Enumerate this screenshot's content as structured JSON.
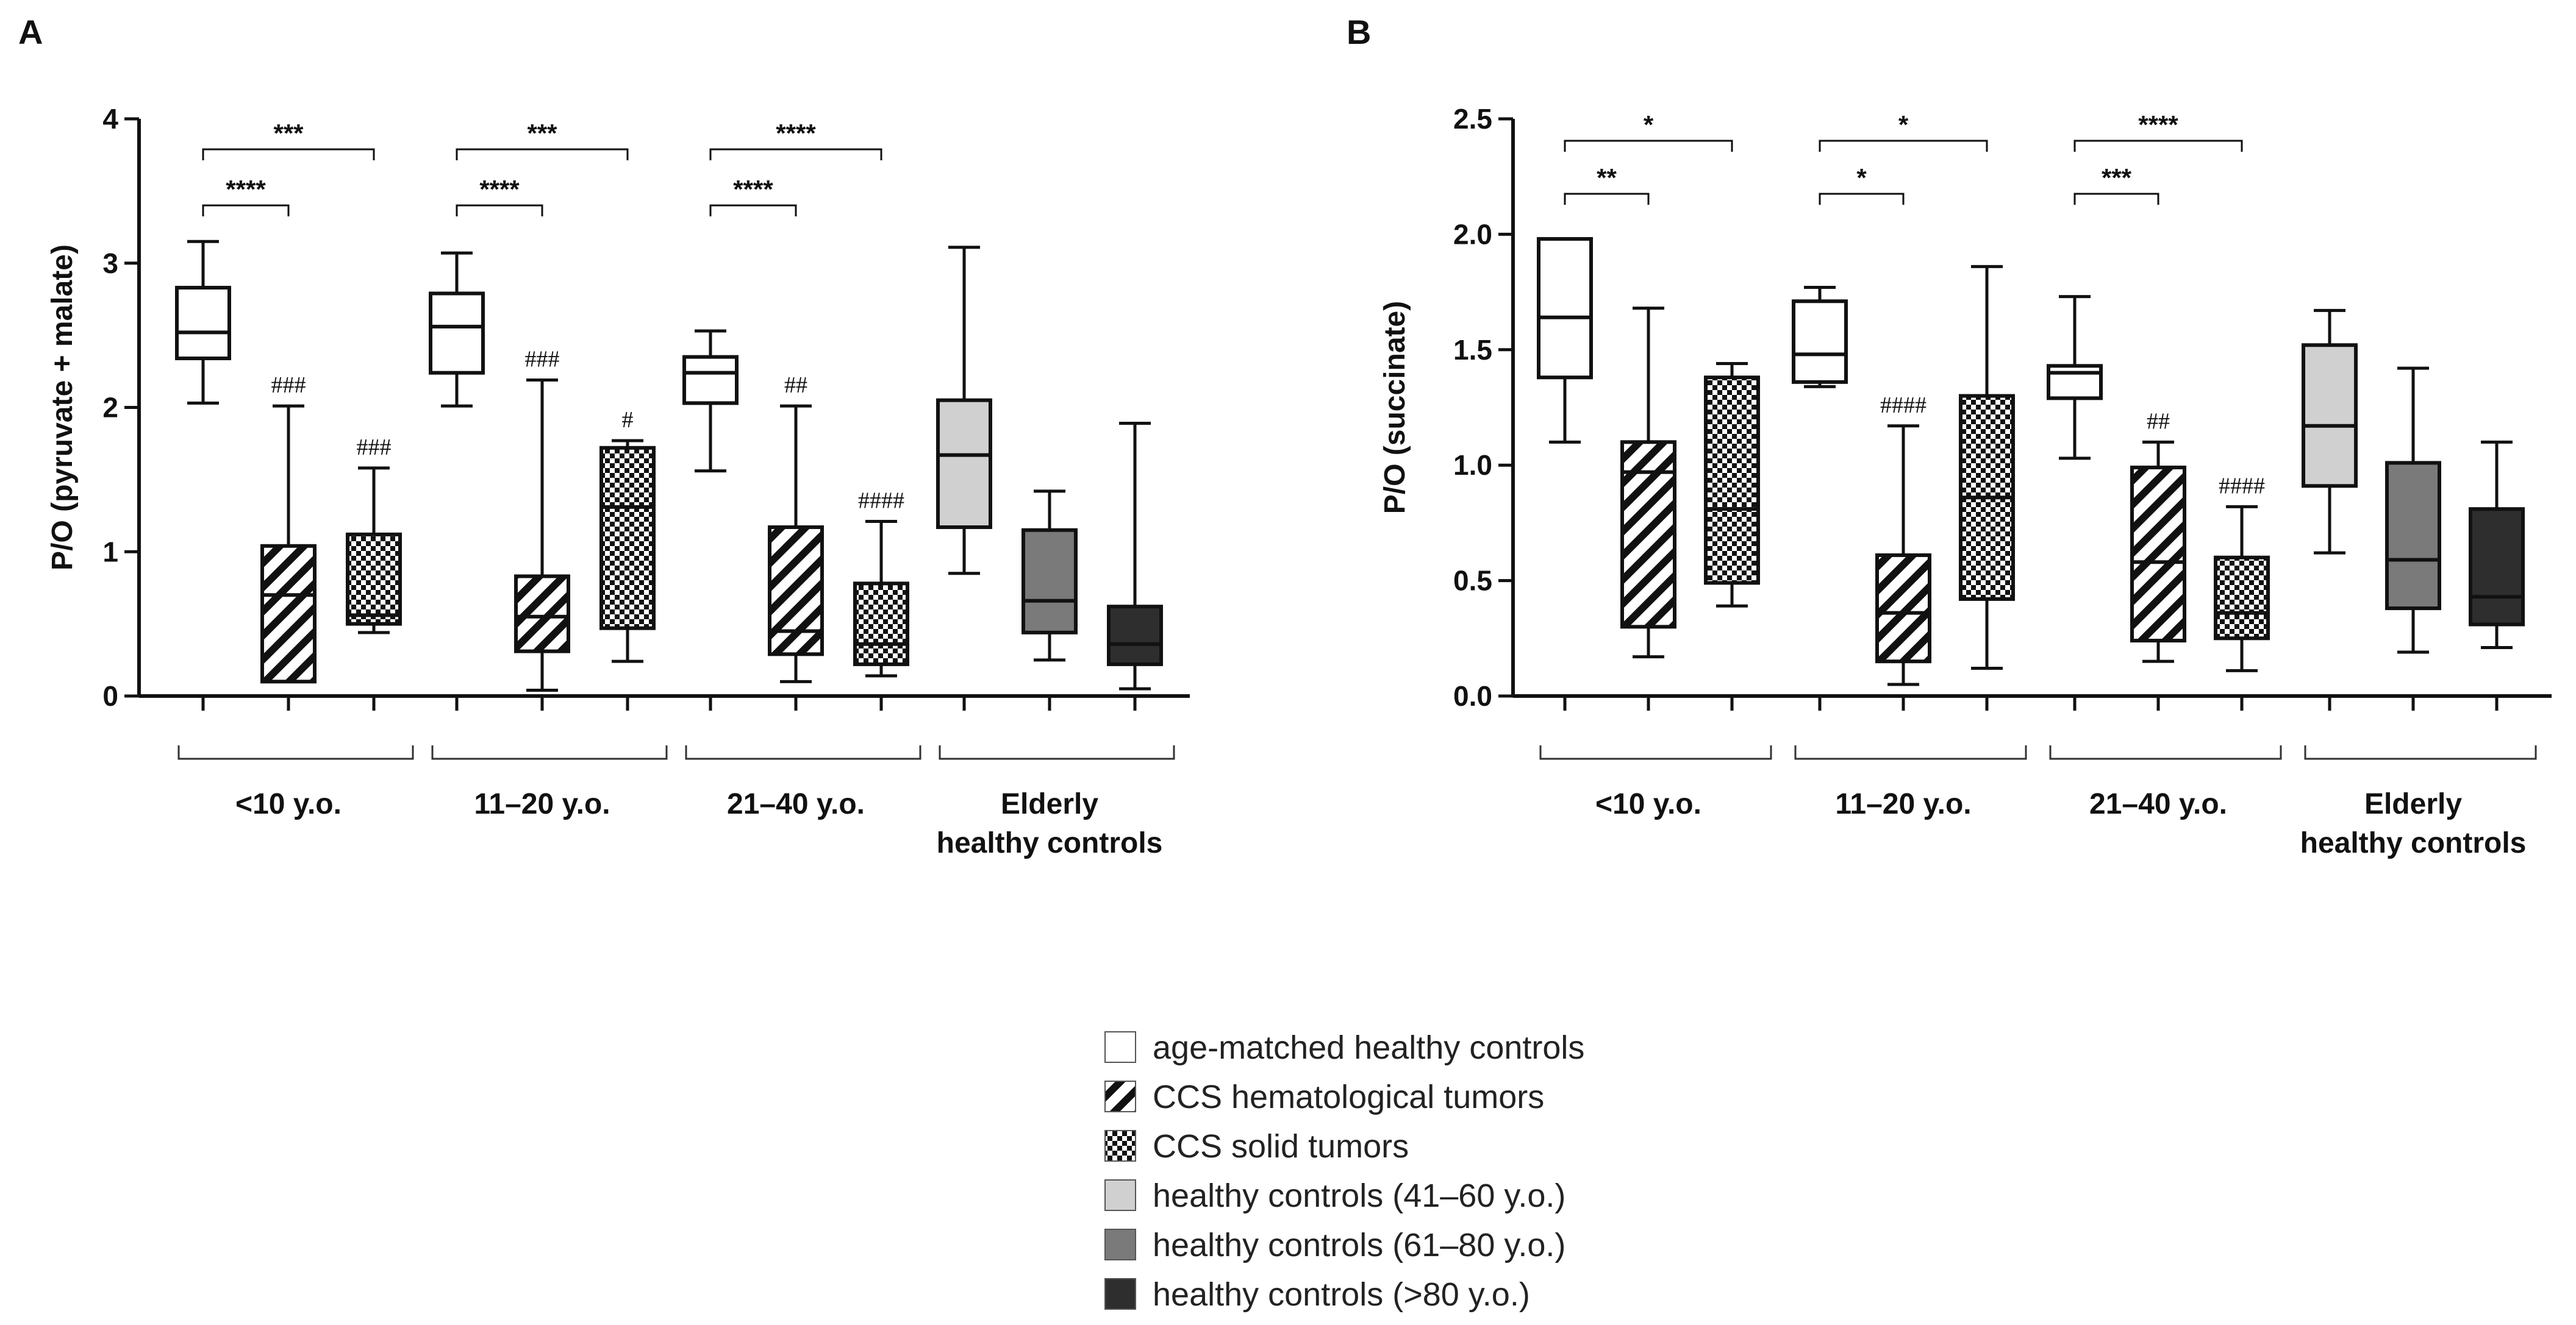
{
  "colors": {
    "white": "#ffffff",
    "light_gray": "#d0d0d0",
    "mid_gray": "#7a7a7a",
    "dark_gray": "#2e2e2e",
    "stroke": "#111111"
  },
  "chart_data": [
    {
      "type": "box",
      "panel": "A",
      "ylabel": "P/O (pyruvate + malate)",
      "ylim": [
        0,
        4
      ],
      "yticks": [
        0,
        1,
        2,
        3,
        4
      ],
      "ytick_labels": [
        "0",
        "1",
        "2",
        "3",
        "4"
      ],
      "groups": [
        "<10 y.o.",
        "11–20 y.o.",
        "21–40 y.o.",
        "Elderly|healthy controls"
      ],
      "boxes": [
        {
          "group": 0,
          "slot": 0,
          "series": "age-matched healthy controls",
          "min": 2.03,
          "q1": 2.34,
          "median": 2.52,
          "q3": 2.83,
          "max": 3.15,
          "annot": ""
        },
        {
          "group": 0,
          "slot": 1,
          "series": "CCS hematological tumors",
          "min": 0.1,
          "q1": 0.1,
          "median": 0.7,
          "q3": 1.04,
          "max": 2.01,
          "annot": "###"
        },
        {
          "group": 0,
          "slot": 2,
          "series": "CCS solid tumors",
          "min": 0.44,
          "q1": 0.5,
          "median": 0.56,
          "q3": 1.12,
          "max": 1.58,
          "annot": "###"
        },
        {
          "group": 1,
          "slot": 0,
          "series": "age-matched healthy controls",
          "min": 2.01,
          "q1": 2.24,
          "median": 2.56,
          "q3": 2.79,
          "max": 3.07,
          "annot": ""
        },
        {
          "group": 1,
          "slot": 1,
          "series": "CCS hematological tumors",
          "min": 0.04,
          "q1": 0.31,
          "median": 0.55,
          "q3": 0.83,
          "max": 2.19,
          "annot": "###"
        },
        {
          "group": 1,
          "slot": 2,
          "series": "CCS solid tumors",
          "min": 0.24,
          "q1": 0.47,
          "median": 1.31,
          "q3": 1.72,
          "max": 1.77,
          "annot": "#"
        },
        {
          "group": 2,
          "slot": 0,
          "series": "age-matched healthy controls",
          "min": 1.56,
          "q1": 2.03,
          "median": 2.24,
          "q3": 2.35,
          "max": 2.53,
          "annot": ""
        },
        {
          "group": 2,
          "slot": 1,
          "series": "CCS hematological tumors",
          "min": 0.1,
          "q1": 0.29,
          "median": 0.45,
          "q3": 1.17,
          "max": 2.01,
          "annot": "##"
        },
        {
          "group": 2,
          "slot": 2,
          "series": "CCS solid tumors",
          "min": 0.14,
          "q1": 0.22,
          "median": 0.36,
          "q3": 0.78,
          "max": 1.21,
          "annot": "####"
        },
        {
          "group": 3,
          "slot": 0,
          "series": "healthy controls (41–60 y.o.)",
          "min": 0.85,
          "q1": 1.17,
          "median": 1.67,
          "q3": 2.05,
          "max": 3.11,
          "annot": ""
        },
        {
          "group": 3,
          "slot": 1,
          "series": "healthy controls (61–80 y.o.)",
          "min": 0.25,
          "q1": 0.44,
          "median": 0.66,
          "q3": 1.15,
          "max": 1.42,
          "annot": ""
        },
        {
          "group": 3,
          "slot": 2,
          "series": "healthy controls (>80 y.o.)",
          "min": 0.05,
          "q1": 0.22,
          "median": 0.36,
          "q3": 0.62,
          "max": 1.89,
          "annot": ""
        }
      ],
      "brackets": [
        {
          "group": 0,
          "from": 0,
          "to": 1,
          "label": "****",
          "level": 0
        },
        {
          "group": 0,
          "from": 0,
          "to": 2,
          "label": "***",
          "level": 1
        },
        {
          "group": 1,
          "from": 0,
          "to": 1,
          "label": "****",
          "level": 0
        },
        {
          "group": 1,
          "from": 0,
          "to": 2,
          "label": "***",
          "level": 1
        },
        {
          "group": 2,
          "from": 0,
          "to": 1,
          "label": "****",
          "level": 0
        },
        {
          "group": 2,
          "from": 0,
          "to": 2,
          "label": "****",
          "level": 1
        }
      ]
    },
    {
      "type": "box",
      "panel": "B",
      "ylabel": "P/O (succinate)",
      "ylim": [
        0,
        2.5
      ],
      "yticks": [
        0,
        0.5,
        1,
        1.5,
        2,
        2.5
      ],
      "ytick_labels": [
        "0.0",
        "0.5",
        "1.0",
        "1.5",
        "2.0",
        "2.5"
      ],
      "groups": [
        "<10 y.o.",
        "11–20 y.o.",
        "21–40 y.o.",
        "Elderly|healthy controls"
      ],
      "boxes": [
        {
          "group": 0,
          "slot": 0,
          "series": "age-matched healthy controls",
          "min": 1.1,
          "q1": 1.38,
          "median": 1.64,
          "q3": 1.98,
          "max": 1.98,
          "annot": ""
        },
        {
          "group": 0,
          "slot": 1,
          "series": "CCS hematological tumors",
          "min": 0.17,
          "q1": 0.3,
          "median": 0.97,
          "q3": 1.1,
          "max": 1.68,
          "annot": ""
        },
        {
          "group": 0,
          "slot": 2,
          "series": "CCS solid tumors",
          "min": 0.39,
          "q1": 0.49,
          "median": 0.81,
          "q3": 1.38,
          "max": 1.44,
          "annot": ""
        },
        {
          "group": 1,
          "slot": 0,
          "series": "age-matched healthy controls",
          "min": 1.34,
          "q1": 1.36,
          "median": 1.48,
          "q3": 1.71,
          "max": 1.77,
          "annot": ""
        },
        {
          "group": 1,
          "slot": 1,
          "series": "CCS hematological tumors",
          "min": 0.05,
          "q1": 0.15,
          "median": 0.36,
          "q3": 0.61,
          "max": 1.17,
          "annot": "####"
        },
        {
          "group": 1,
          "slot": 2,
          "series": "CCS solid tumors",
          "min": 0.12,
          "q1": 0.42,
          "median": 0.86,
          "q3": 1.3,
          "max": 1.86,
          "annot": ""
        },
        {
          "group": 2,
          "slot": 0,
          "series": "age-matched healthy controls",
          "min": 1.03,
          "q1": 1.29,
          "median": 1.4,
          "q3": 1.43,
          "max": 1.73,
          "annot": ""
        },
        {
          "group": 2,
          "slot": 1,
          "series": "CCS hematological tumors",
          "min": 0.15,
          "q1": 0.24,
          "median": 0.58,
          "q3": 0.99,
          "max": 1.1,
          "annot": "##"
        },
        {
          "group": 2,
          "slot": 2,
          "series": "CCS solid tumors",
          "min": 0.11,
          "q1": 0.25,
          "median": 0.36,
          "q3": 0.6,
          "max": 0.82,
          "annot": "####"
        },
        {
          "group": 3,
          "slot": 0,
          "series": "healthy controls (41–60 y.o.)",
          "min": 0.62,
          "q1": 0.91,
          "median": 1.17,
          "q3": 1.52,
          "max": 1.67,
          "annot": ""
        },
        {
          "group": 3,
          "slot": 1,
          "series": "healthy controls (61–80 y.o.)",
          "min": 0.19,
          "q1": 0.38,
          "median": 0.59,
          "q3": 1.01,
          "max": 1.42,
          "annot": ""
        },
        {
          "group": 3,
          "slot": 2,
          "series": "healthy controls (>80 y.o.)",
          "min": 0.21,
          "q1": 0.31,
          "median": 0.43,
          "q3": 0.81,
          "max": 1.1,
          "annot": ""
        }
      ],
      "brackets": [
        {
          "group": 0,
          "from": 0,
          "to": 1,
          "label": "**",
          "level": 0
        },
        {
          "group": 0,
          "from": 0,
          "to": 2,
          "label": "*",
          "level": 1
        },
        {
          "group": 1,
          "from": 0,
          "to": 1,
          "label": "*",
          "level": 0
        },
        {
          "group": 1,
          "from": 0,
          "to": 2,
          "label": "*",
          "level": 1
        },
        {
          "group": 2,
          "from": 0,
          "to": 1,
          "label": "***",
          "level": 0
        },
        {
          "group": 2,
          "from": 0,
          "to": 2,
          "label": "****",
          "level": 1
        }
      ]
    }
  ],
  "legend": [
    {
      "label": "age-matched healthy controls",
      "style": "white"
    },
    {
      "label": "CCS hematological tumors",
      "style": "hatch"
    },
    {
      "label": "CCS solid tumors",
      "style": "check"
    },
    {
      "label": "healthy controls (41–60 y.o.)",
      "style": "light_gray"
    },
    {
      "label": "healthy controls (61–80 y.o.)",
      "style": "mid_gray"
    },
    {
      "label": "healthy controls (>80 y.o.)",
      "style": "dark_gray"
    }
  ]
}
